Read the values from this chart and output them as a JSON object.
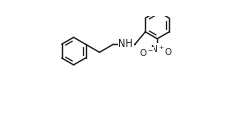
{
  "figsize": [
    2.51,
    1.23
  ],
  "dpi": 100,
  "bg": "#ffffff",
  "lc": "#1a1a1a",
  "lw": 1.0,
  "fs_nh": 7.0,
  "fs_no2": 6.5,
  "xlim": [
    -0.3,
    10.3
  ],
  "ylim": [
    0.2,
    5.2
  ],
  "r": 0.75,
  "bl": 0.88
}
